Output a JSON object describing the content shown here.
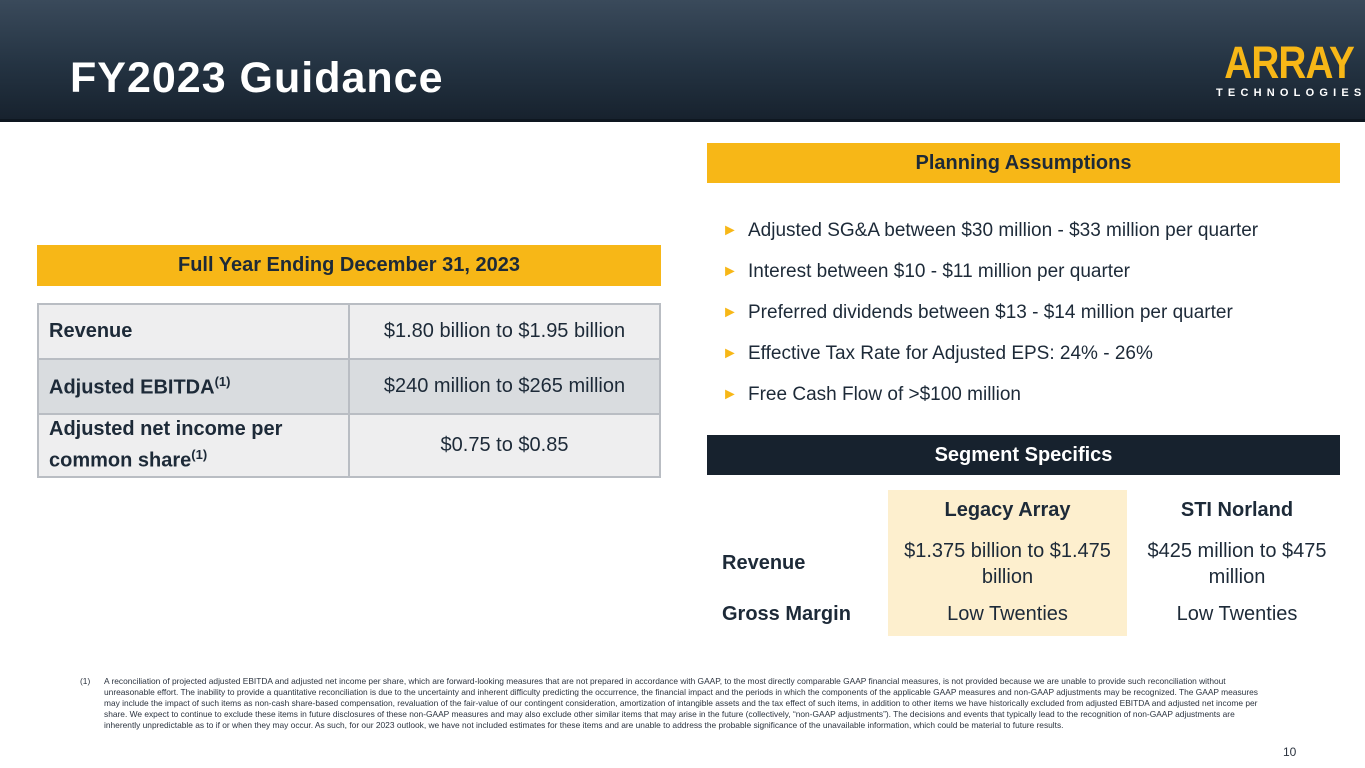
{
  "header": {
    "title": "FY2023 Guidance",
    "logo_word": "ARRAY",
    "logo_sub": "TECHNOLOGIES"
  },
  "full_year": {
    "heading": "Full Year Ending December 31, 2023",
    "rows": [
      {
        "label": "Revenue",
        "sup": "",
        "value": "$1.80 billion to $1.95 billion"
      },
      {
        "label": "Adjusted EBITDA",
        "sup": "(1)",
        "value": "$240 million to $265 million"
      },
      {
        "label_line1": "Adjusted net income per",
        "label_line2": "common share",
        "sup": "(1)",
        "value": "$0.75 to $0.85"
      }
    ]
  },
  "planning": {
    "heading": "Planning Assumptions",
    "bullet_glyph": "►",
    "items": [
      "Adjusted SG&A between $30 million - $33 million per quarter",
      "Interest between $10 - $11 million per quarter",
      "Preferred dividends between $13 - $14 million per quarter",
      "Effective Tax Rate for Adjusted EPS: 24% - 26%",
      "Free Cash Flow of >$100 million"
    ]
  },
  "segment": {
    "heading": "Segment Specifics",
    "columns": [
      "Legacy Array",
      "STI Norland"
    ],
    "rows": [
      {
        "label": "Revenue",
        "values": [
          "$1.375 billion to $1.475 billion",
          "$425 million to $475 million"
        ]
      },
      {
        "label": "Gross Margin",
        "values": [
          "Low Twenties",
          "Low Twenties"
        ]
      }
    ]
  },
  "footnote": {
    "marker": "(1)",
    "text": "A reconciliation of projected adjusted EBITDA and adjusted net income per share, which are forward-looking measures that are not prepared in accordance with GAAP, to the most directly comparable GAAP financial measures, is not provided because we are unable to provide such reconciliation without unreasonable effort. The inability to provide a quantitative reconciliation is due to the uncertainty and inherent difficulty predicting the occurrence, the financial impact and the periods in which the components of the applicable GAAP measures and non-GAAP adjustments may be recognized. The GAAP measures may include the impact of such items as non-cash share-based compensation, revaluation of the fair-value of our contingent consideration, amortization of intangible assets and the tax effect of such items, in addition to other items we have historically excluded from adjusted EBITDA and adjusted net income per share. We expect to continue to exclude these items in future disclosures of these non-GAAP measures and may also exclude other similar items that may arise in the future (collectively, “non-GAAP adjustments”). The decisions and events that typically lead to the recognition of non-GAAP adjustments are inherently unpredictable as to if or when they may occur. As such, for our 2023 outlook, we have not included estimates for these items and are unable to address the probable significance of the unavailable information, which could be material to future results."
  },
  "page_number": "10",
  "colors": {
    "gold": "#f7b717",
    "navy": "#17222e",
    "highlight": "#fdefce"
  }
}
